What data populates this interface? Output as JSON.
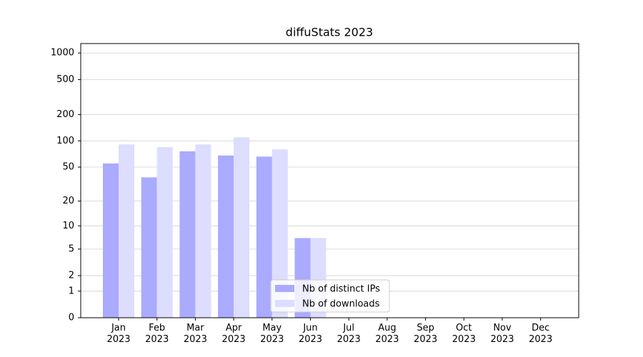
{
  "chart_data": {
    "type": "bar",
    "title": "diffuStats 2023",
    "categories": [
      "Jan\n2023",
      "Feb\n2023",
      "Mar\n2023",
      "Apr\n2023",
      "May\n2023",
      "Jun\n2023",
      "Jul\n2023",
      "Aug\n2023",
      "Sep\n2023",
      "Oct\n2023",
      "Nov\n2023",
      "Dec\n2023"
    ],
    "series": [
      {
        "name": "Nb of distinct IPs",
        "color": "#aaaaff",
        "values": [
          55,
          38,
          76,
          68,
          66,
          7,
          0,
          0,
          0,
          0,
          0,
          0
        ]
      },
      {
        "name": "Nb of downloads",
        "color": "#ddddff",
        "values": [
          91,
          85,
          91,
          110,
          80,
          7,
          0,
          0,
          0,
          0,
          0,
          0
        ]
      }
    ],
    "yscale": "symlog",
    "ylim": [
      0,
      1280
    ],
    "yticks": [
      0,
      1,
      2,
      5,
      10,
      20,
      50,
      100,
      200,
      500,
      1000
    ],
    "grid": true,
    "legend": "lower center"
  }
}
